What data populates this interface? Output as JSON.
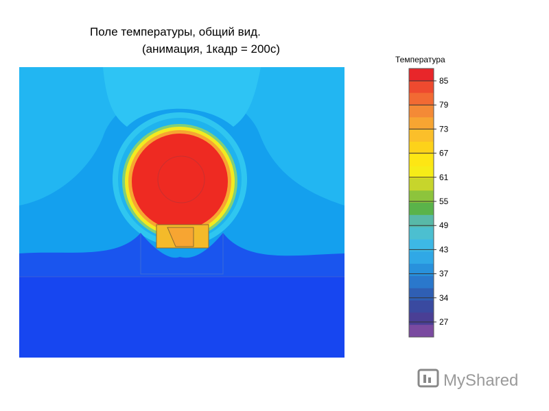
{
  "title": {
    "line1": "Поле температуры, общий вид.",
    "line2": "(анимация, 1кадр = 200с)"
  },
  "colorbar": {
    "label": "Температура",
    "ticks": [
      85,
      79,
      73,
      67,
      61,
      55,
      49,
      43,
      37,
      34,
      27
    ],
    "colors": [
      "#e8262a",
      "#ee4a2f",
      "#f26a33",
      "#f48a36",
      "#f7a532",
      "#fbbf2a",
      "#fdd21a",
      "#fde614",
      "#f6ec18",
      "#c7d52c",
      "#8dc43c",
      "#5ab34a",
      "#58b9a8",
      "#4cbfd0",
      "#3db8e6",
      "#30a8e6",
      "#2891dc",
      "#2a78cc",
      "#2f5fb4",
      "#3a4aa0",
      "#4a3f95",
      "#7a4aa0"
    ]
  },
  "watermark": "MyShared"
}
